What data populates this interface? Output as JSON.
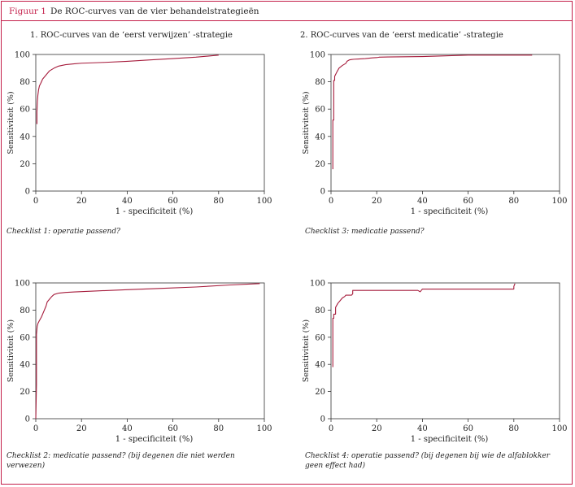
{
  "figure": {
    "label": "Figuur 1",
    "title": "De ROC-curves van de vier behandelstrategieën",
    "frame_color": "#c41f4a",
    "curve_color": "#a61c3c"
  },
  "chart_data": [
    {
      "type": "line",
      "title": "1. ROC-curves van de ‘eerst verwijzen’ -strategie",
      "caption": "Checklist 1: operatie passend?",
      "xlabel": "1 - specificiteit (%)",
      "ylabel": "Sensitiviteit (%)",
      "xlim": [
        0,
        100
      ],
      "ylim": [
        0,
        100
      ],
      "xticks": [
        "0",
        "20",
        "40",
        "60",
        "80",
        "100"
      ],
      "yticks": [
        "0",
        "20",
        "40",
        "60",
        "80",
        "100"
      ],
      "grid": false,
      "series": [
        {
          "x": [
            0.5,
            0.5,
            0.7,
            0.9,
            1.2,
            1.6,
            2.2,
            3,
            4,
            5,
            6,
            8,
            10,
            13,
            17,
            20,
            30,
            40,
            50,
            60,
            70,
            80
          ],
          "y": [
            49,
            58,
            66,
            70,
            74,
            77,
            79,
            82,
            84,
            86,
            88,
            90,
            91.5,
            92.5,
            93.2,
            93.6,
            94.2,
            95,
            96,
            97,
            98,
            99.5
          ]
        }
      ]
    },
    {
      "type": "line",
      "title": "2. ROC-curves van de ‘eerst medicatie’ -strategie",
      "caption": "Checklist 3: medicatie passend?",
      "xlabel": "1 - specificiteit (%)",
      "ylabel": "Sensitiviteit (%)",
      "xlim": [
        0,
        100
      ],
      "ylim": [
        0,
        100
      ],
      "xticks": [
        "0",
        "20",
        "40",
        "60",
        "80",
        "100"
      ],
      "yticks": [
        "0",
        "20",
        "40",
        "60",
        "80",
        "100"
      ],
      "grid": false,
      "series": [
        {
          "x": [
            0.8,
            0.8,
            1.2,
            1.2,
            1.6,
            1.6,
            2.5,
            3.5,
            5,
            6.5,
            7,
            8,
            9,
            10,
            12,
            15,
            18,
            20,
            21,
            25,
            40,
            50,
            60,
            88
          ],
          "y": [
            16,
            52,
            52,
            81,
            81,
            84,
            87,
            90,
            92,
            93.5,
            95,
            96,
            96.3,
            96.5,
            96.7,
            97,
            97.5,
            97.7,
            98,
            98.2,
            98.5,
            99,
            99.5,
            99.5
          ]
        }
      ]
    },
    {
      "type": "line",
      "title": "",
      "caption": "Checklist 2: medicatie passend? (bij degenen die niet werden verwezen)",
      "xlabel": "1 - specificiteit (%)",
      "ylabel": "Sensitiviteit (%)",
      "xlim": [
        0,
        100
      ],
      "ylim": [
        0,
        100
      ],
      "xticks": [
        "0",
        "20",
        "40",
        "60",
        "80",
        "100"
      ],
      "yticks": [
        "0",
        "20",
        "40",
        "60",
        "80",
        "100"
      ],
      "grid": false,
      "series": [
        {
          "x": [
            0,
            0.3,
            0.3,
            0.6,
            0.9,
            1.5,
            2.5,
            3.5,
            4.5,
            5,
            6,
            7,
            8,
            10,
            13,
            17,
            25,
            40,
            55,
            70,
            85,
            98
          ],
          "y": [
            0,
            25,
            62,
            68,
            70,
            72,
            75,
            79,
            83,
            86,
            88,
            90,
            91.5,
            92.5,
            93,
            93.4,
            94,
            95,
            96,
            97,
            98.5,
            99.5
          ]
        }
      ]
    },
    {
      "type": "line",
      "title": "",
      "caption": "Checklist 4: operatie passend? (bij degenen bij wie de alfablokker geen effect had)",
      "xlabel": "1 - specificiteit (%)",
      "ylabel": "Sensitiviteit (%)",
      "xlim": [
        0,
        100
      ],
      "ylim": [
        0,
        100
      ],
      "xticks": [
        "0",
        "20",
        "40",
        "60",
        "80",
        "100"
      ],
      "yticks": [
        "0",
        "20",
        "40",
        "60",
        "80",
        "100"
      ],
      "grid": false,
      "series": [
        {
          "x": [
            0.8,
            0.8,
            1.2,
            1.2,
            2,
            2,
            3,
            4,
            5,
            6,
            6.5,
            7,
            9,
            9.5,
            9.5,
            38,
            39,
            39.5,
            40,
            80,
            80,
            80.5
          ],
          "y": [
            38,
            74,
            74,
            77,
            77,
            82,
            85,
            87,
            89,
            90,
            91,
            91,
            91,
            92,
            94.5,
            94.5,
            93.5,
            94.5,
            95.5,
            95.5,
            97.5,
            99.5
          ]
        }
      ]
    }
  ]
}
